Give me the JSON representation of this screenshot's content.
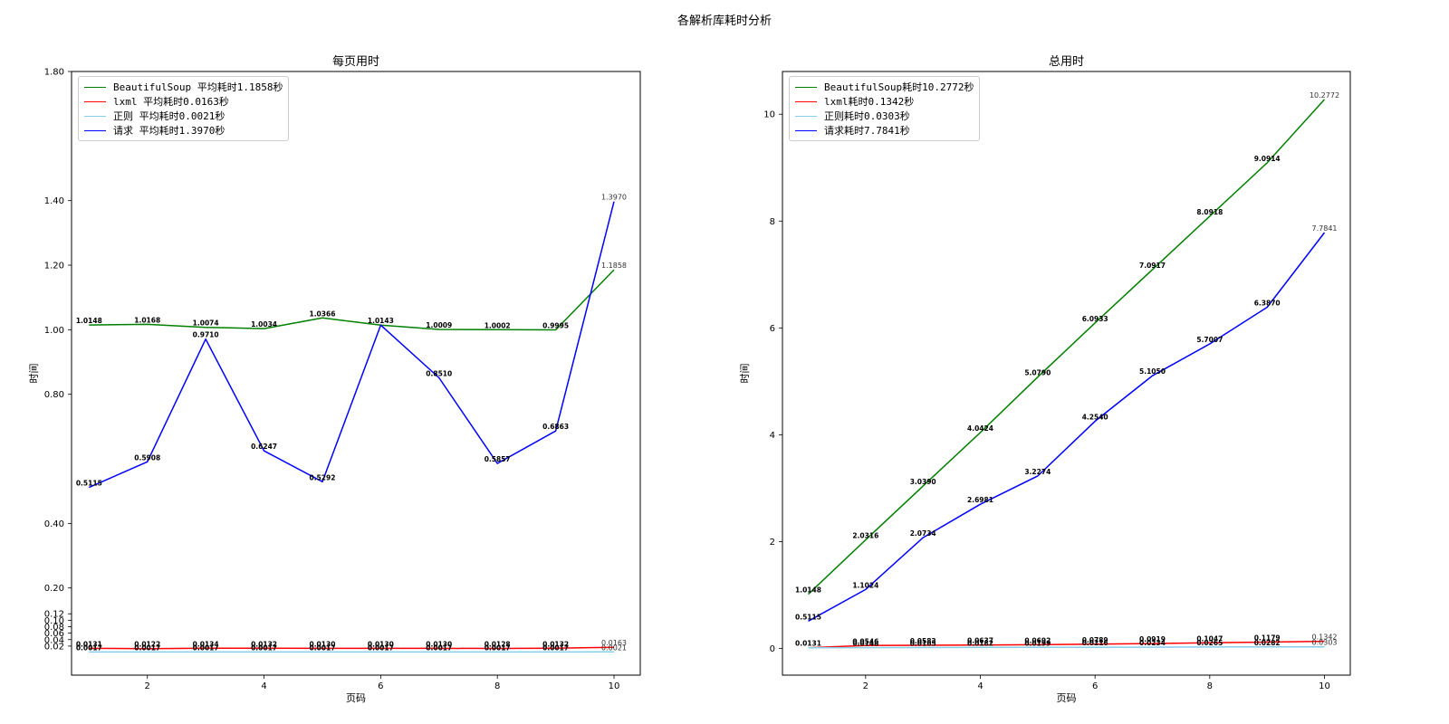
{
  "figure_title": "各解析库耗时分析",
  "chart_data": [
    {
      "type": "line",
      "title": "每页用时",
      "xlabel": "页码",
      "ylabel": "时间",
      "x": [
        1,
        2,
        3,
        4,
        5,
        6,
        7,
        8,
        9,
        10
      ],
      "xticks": [
        2,
        4,
        6,
        8,
        10
      ],
      "xlim": [
        0.7,
        10.45
      ],
      "yticks": [
        0.02,
        0.04,
        0.06,
        0.08,
        0.1,
        0.12,
        0.2,
        0.4,
        0.8,
        1.0,
        1.2,
        1.4,
        1.8
      ],
      "ytick_labels": [
        "0.02",
        "0.04",
        "0.06",
        "0.08",
        "0.10",
        "0.12",
        "0.20",
        "0.40",
        "0.80",
        "1.00",
        "1.20",
        "1.40",
        "1.80"
      ],
      "ylim": [
        -0.07,
        1.8
      ],
      "grid": false,
      "legend_position": "top-left",
      "series": [
        {
          "name": "BeautifulSoup 平均耗时1.1858秒",
          "color": "#008000",
          "values": [
            1.0148,
            1.0168,
            1.0074,
            1.0034,
            1.0366,
            1.0143,
            1.0009,
            1.0002,
            0.9995,
            1.1858
          ],
          "labels": [
            "1.0148",
            "1.0168",
            "1.0074",
            "1.0034",
            "1.0366",
            "1.0143",
            "1.0009",
            "1.0002",
            "0.9995",
            "1.1858"
          ]
        },
        {
          "name": "lxml 平均耗时0.0163秒",
          "color": "#ff0000",
          "values": [
            0.0131,
            0.0122,
            0.0134,
            0.0132,
            0.013,
            0.013,
            0.013,
            0.0128,
            0.0132,
            0.0163
          ],
          "labels": [
            "0.0131",
            "0.0122",
            "0.0134",
            "0.0132",
            "0.0130",
            "0.0130",
            "0.0130",
            "0.0128",
            "0.0132",
            "0.0163"
          ]
        },
        {
          "name": "正则 平均耗时0.0021秒",
          "color": "#87ceeb",
          "values": [
            0.0017,
            0.0017,
            0.0017,
            0.0017,
            0.0017,
            0.0017,
            0.0017,
            0.0017,
            0.0017,
            0.0021
          ],
          "labels": [
            "0.0017",
            "0.0017",
            "0.0017",
            "0.0017",
            "0.0017",
            "0.0017",
            "0.0017",
            "0.0017",
            "0.0017",
            "0.0021"
          ]
        },
        {
          "name": "请求 平均耗时1.3970秒",
          "color": "#0000ff",
          "values": [
            0.5115,
            0.5908,
            0.971,
            0.6247,
            0.5292,
            1.0143,
            0.851,
            0.5857,
            0.6863,
            1.397
          ],
          "labels": [
            "0.5115",
            "0.5908",
            "0.9710",
            "0.6247",
            "0.5292",
            "",
            "0.8510",
            "0.5857",
            "0.6863",
            "1.3970"
          ]
        }
      ]
    },
    {
      "type": "line",
      "title": "总用时",
      "xlabel": "页码",
      "ylabel": "时间",
      "x": [
        1,
        2,
        3,
        4,
        5,
        6,
        7,
        8,
        9,
        10
      ],
      "xticks": [
        2,
        4,
        6,
        8,
        10
      ],
      "xlim": [
        0.55,
        10.45
      ],
      "yticks": [
        0,
        2,
        4,
        6,
        8,
        10
      ],
      "ytick_labels": [
        "0",
        "2",
        "4",
        "6",
        "8",
        "10"
      ],
      "ylim": [
        -0.5,
        10.8
      ],
      "grid": false,
      "legend_position": "top-left",
      "series": [
        {
          "name": "BeautifulSoup耗时10.2772秒",
          "color": "#008000",
          "values": [
            1.0148,
            2.0316,
            3.039,
            4.0424,
            5.079,
            6.0933,
            7.0917,
            8.0918,
            9.0914,
            10.2772
          ],
          "labels": [
            "1.0148",
            "2.0316",
            "3.0390",
            "4.0424",
            "5.0790",
            "6.0933",
            "7.0917",
            "8.0918",
            "9.0914",
            "10.2772"
          ]
        },
        {
          "name": "lxml耗时0.1342秒",
          "color": "#ff0000",
          "values": [
            0.0131,
            0.0546,
            0.0583,
            0.0637,
            0.0692,
            0.0789,
            0.0919,
            0.1047,
            0.1179,
            0.1342
          ],
          "labels": [
            "0.0131",
            "0.0546",
            "0.0583",
            "0.0637",
            "0.0692",
            "0.0789",
            "0.0919",
            "0.1047",
            "0.1179",
            "0.1342"
          ]
        },
        {
          "name": "正则耗时0.0303秒",
          "color": "#87ceeb",
          "values": [
            0.0131,
            0.0148,
            0.0165,
            0.0182,
            0.0199,
            0.0216,
            0.0234,
            0.0265,
            0.0282,
            0.0303
          ],
          "labels": [
            "",
            "0.0148",
            "0.0165",
            "0.0182",
            "0.0199",
            "0.0216",
            "0.0234",
            "0.0265",
            "0.0282",
            "0.0303"
          ]
        },
        {
          "name": "请求耗时7.7841秒",
          "color": "#0000ff",
          "values": [
            0.5115,
            1.1024,
            2.0734,
            2.6981,
            3.2274,
            4.254,
            5.105,
            5.7007,
            6.387,
            7.7841
          ],
          "labels": [
            "0.5115",
            "1.1024",
            "2.0734",
            "2.6981",
            "3.2274",
            "4.2540",
            "5.1050",
            "5.7007",
            "6.3870",
            "7.7841"
          ]
        }
      ]
    }
  ]
}
